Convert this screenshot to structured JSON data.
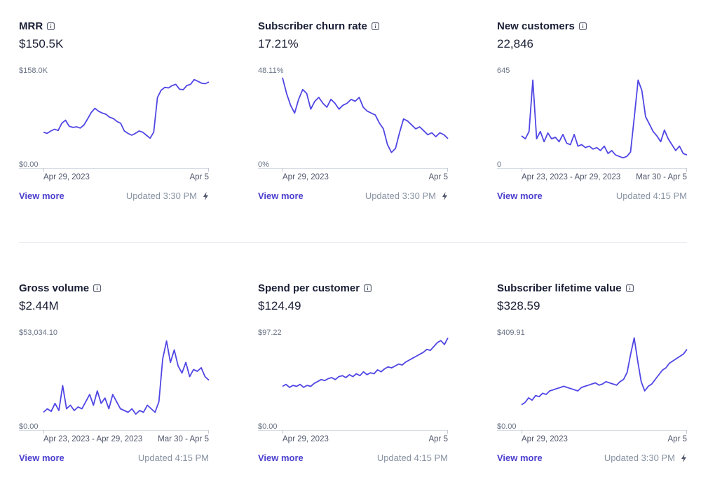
{
  "accent": "#5046e4",
  "cards": [
    {
      "title": "MRR",
      "value": "$150.5K",
      "y_max": "$158.0K",
      "y_min": "$0.00",
      "x_start": "Apr 29, 2023",
      "x_end": "Apr 5",
      "view_more": "View more",
      "updated": "Updated 3:30 PM",
      "live": true,
      "chart_data": {
        "type": "line",
        "ylim": [
          0,
          158000
        ],
        "values": [
          60000,
          58000,
          62000,
          65000,
          63000,
          75000,
          80000,
          70000,
          68000,
          69000,
          67000,
          72000,
          82000,
          93000,
          100000,
          95000,
          92000,
          90000,
          85000,
          83000,
          78000,
          75000,
          62000,
          58000,
          55000,
          58000,
          62000,
          60000,
          55000,
          50000,
          60000,
          118000,
          130000,
          135000,
          134000,
          138000,
          140000,
          132000,
          131000,
          138000,
          140000,
          148000,
          145000,
          142000,
          141000,
          144000
        ]
      }
    },
    {
      "title": "Subscriber churn rate",
      "value": "17.21%",
      "y_max": "48.11%",
      "y_min": "0%",
      "x_start": "Apr 29, 2023",
      "x_end": "Apr 5",
      "view_more": "View more",
      "updated": "Updated 3:30 PM",
      "live": true,
      "chart_data": {
        "type": "line",
        "ylim": [
          0,
          48.11
        ],
        "values": [
          46,
          38,
          32,
          28,
          35,
          40,
          38,
          30,
          34,
          36,
          33,
          31,
          35,
          33,
          30,
          32,
          33,
          35,
          34,
          36,
          31,
          29,
          28,
          27,
          23,
          20,
          12,
          8,
          10,
          18,
          25,
          24,
          22,
          20,
          21,
          19,
          17,
          18,
          16,
          18,
          17,
          15
        ]
      }
    },
    {
      "title": "New customers",
      "value": "22,846",
      "y_max": "645",
      "y_min": "0",
      "x_start": "Apr 23, 2023 - Apr 29, 2023",
      "x_end": "Mar 30 - Apr 5",
      "view_more": "View more",
      "updated": "Updated 4:15 PM",
      "live": false,
      "chart_data": {
        "type": "line",
        "ylim": [
          0,
          645
        ],
        "values": [
          220,
          200,
          250,
          600,
          200,
          250,
          180,
          240,
          200,
          210,
          180,
          230,
          170,
          160,
          230,
          150,
          160,
          140,
          150,
          130,
          140,
          120,
          150,
          100,
          120,
          90,
          80,
          70,
          80,
          110,
          350,
          600,
          530,
          350,
          300,
          250,
          220,
          180,
          260,
          200,
          160,
          120,
          150,
          100,
          90
        ]
      }
    },
    {
      "title": "Gross volume",
      "value": "$2.44M",
      "y_max": "$53,034.10",
      "y_min": "$0.00",
      "x_start": "Apr 23, 2023 - Apr 29, 2023",
      "x_end": "Mar 30 - Apr 5",
      "view_more": "View more",
      "updated": "Updated 4:15 PM",
      "live": false,
      "chart_data": {
        "type": "line",
        "ylim": [
          0,
          53034.1
        ],
        "values": [
          10000,
          12000,
          10500,
          15000,
          11000,
          25000,
          12000,
          14000,
          11000,
          13000,
          12000,
          16000,
          20000,
          14000,
          22000,
          15000,
          18000,
          12000,
          20000,
          16000,
          12000,
          11000,
          10000,
          12000,
          9000,
          11000,
          10000,
          14000,
          12000,
          10000,
          16000,
          40000,
          50000,
          38000,
          45000,
          36000,
          32000,
          38000,
          30000,
          34000,
          33000,
          35000,
          30000,
          28000
        ]
      }
    },
    {
      "title": "Spend per customer",
      "value": "$124.49",
      "y_max": "$97.22",
      "y_min": "$0.00",
      "x_start": "Apr 29, 2023",
      "x_end": "Apr 5",
      "view_more": "View more",
      "updated": "Updated 4:15 PM",
      "live": false,
      "chart_data": {
        "type": "line",
        "ylim": [
          0,
          97.22
        ],
        "values": [
          45,
          47,
          44,
          46,
          45,
          47,
          44,
          46,
          45,
          48,
          50,
          52,
          51,
          53,
          54,
          52,
          55,
          56,
          54,
          57,
          55,
          58,
          56,
          60,
          57,
          59,
          58,
          62,
          60,
          63,
          65,
          64,
          66,
          68,
          67,
          70,
          72,
          74,
          76,
          78,
          80,
          83,
          82,
          86,
          90,
          92,
          88,
          95
        ]
      }
    },
    {
      "title": "Subscriber lifetime value",
      "value": "$328.59",
      "y_max": "$409.91",
      "y_min": "$0.00",
      "x_start": "Apr 29, 2023",
      "x_end": "Apr 5",
      "view_more": "View more",
      "updated": "Updated 3:30 PM",
      "live": true,
      "chart_data": {
        "type": "line",
        "ylim": [
          0,
          409.91
        ],
        "values": [
          110,
          120,
          140,
          130,
          150,
          145,
          160,
          155,
          170,
          175,
          180,
          185,
          190,
          185,
          180,
          175,
          170,
          185,
          190,
          195,
          200,
          205,
          195,
          200,
          210,
          205,
          200,
          195,
          210,
          220,
          250,
          330,
          400,
          300,
          210,
          170,
          190,
          200,
          220,
          240,
          260,
          270,
          290,
          300,
          310,
          320,
          330,
          350
        ]
      }
    }
  ]
}
